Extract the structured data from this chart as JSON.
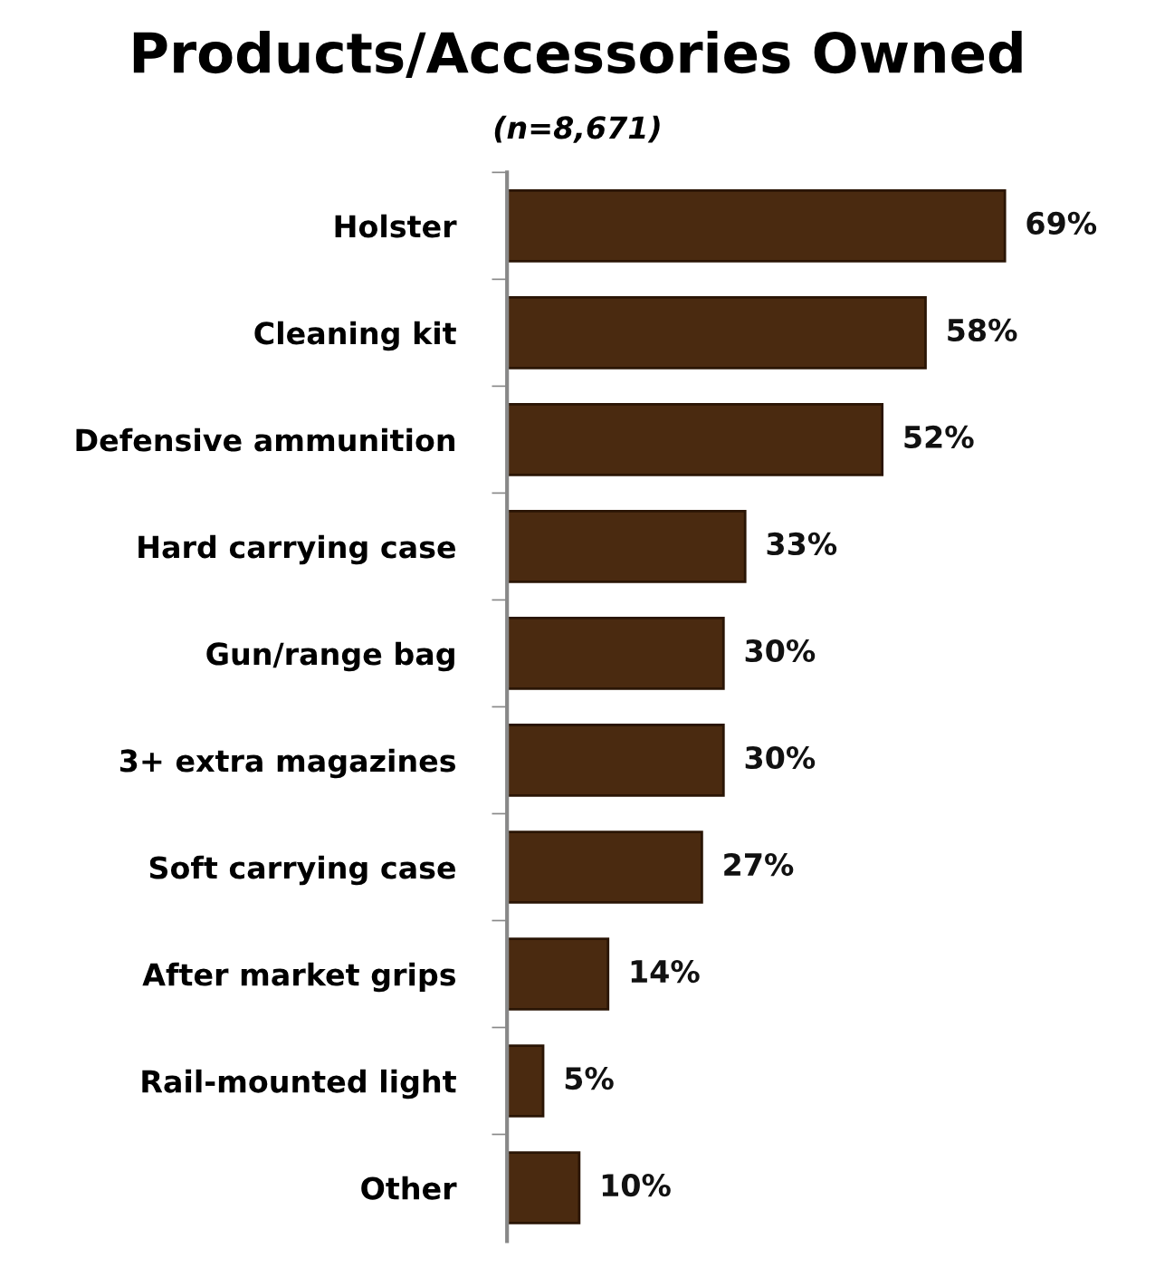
{
  "chart_data": {
    "type": "bar",
    "orientation": "horizontal",
    "title": "Products/Accessories Owned",
    "subtitle": "(n=8,671)",
    "categories": [
      "Holster",
      "Cleaning kit",
      "Defensive ammunition",
      "Hard carrying case",
      "Gun/range bag",
      "3+ extra magazines",
      "Soft carrying case",
      "After market grips",
      "Rail-mounted light",
      "Other"
    ],
    "values": [
      69,
      58,
      52,
      33,
      30,
      30,
      27,
      14,
      5,
      10
    ],
    "value_labels": [
      "69%",
      "58%",
      "52%",
      "33%",
      "30%",
      "30%",
      "27%",
      "14%",
      "5%",
      "10%"
    ],
    "color": "#4a2a10"
  }
}
